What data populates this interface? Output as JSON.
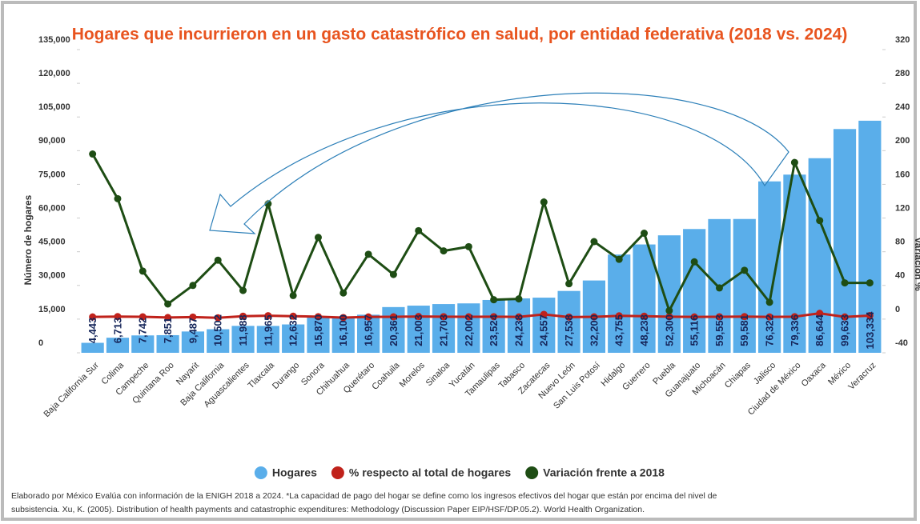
{
  "chart_data": {
    "type": "bar_line",
    "title": "Hogares que incurrieron en un gasto catastrófico en salud, por entidad federativa (2018 vs. 2024)",
    "ylabel": "Número de hogares",
    "y2label": "Variación %",
    "categories": [
      "Baja California Sur",
      "Colima",
      "Campeche",
      "Quintana Roo",
      "Nayarit",
      "Baja California",
      "Aguascalientes",
      "Tlaxcala",
      "Durango",
      "Sonora",
      "Chihuahua",
      "Querétaro",
      "Coahuila",
      "Morelos",
      "Sinaloa",
      "Yucatán",
      "Tamaulipas",
      "Tabasco",
      "Zacatecas",
      "Nuevo León",
      "San Luis Potosí",
      "Hidalgo",
      "Guerrero",
      "Puebla",
      "Guanajuato",
      "Michoacán",
      "Chiapas",
      "Jalisco",
      "Ciudad de México",
      "Oaxaca",
      "México",
      "Veracruz"
    ],
    "series": [
      {
        "name": "Hogares",
        "type": "bar",
        "axis": "y",
        "color": "#5aaeea",
        "values": [
          4443,
          6713,
          7742,
          7851,
          9487,
          10502,
          11988,
          11965,
          12632,
          15870,
          16100,
          16957,
          20361,
          21003,
          21703,
          22002,
          23524,
          24238,
          24557,
          27538,
          32200,
          43755,
          48238,
          52300,
          55116,
          59553,
          59581,
          76322,
          79336,
          86644,
          99633,
          103334
        ],
        "value_labels": [
          "4,443",
          "6,713",
          "7,742",
          "7,851",
          "9,487",
          "10,502",
          "11,988",
          "11,965",
          "12,632",
          "15,870",
          "16,100",
          "16,957",
          "20,361",
          "21,003",
          "21,703",
          "22,002",
          "23,524",
          "24,238",
          "24,557",
          "27,538",
          "32,200",
          "43,755",
          "48,238",
          "52,300",
          "55,116",
          "59,553",
          "59,581",
          "76,322",
          "79,336",
          "86,644",
          "99,633",
          "103,334"
        ]
      },
      {
        "name": "% respecto al total de hogares",
        "type": "line",
        "axis": "y2",
        "color": "#c0221b",
        "values": [
          2.6,
          3.0,
          2.7,
          1.9,
          2.4,
          1.6,
          3.5,
          4.1,
          3.5,
          2.9,
          1.8,
          2.6,
          2.7,
          3.1,
          2.9,
          2.7,
          2.9,
          2.6,
          5.6,
          2.4,
          2.7,
          3.9,
          3.5,
          2.9,
          2.6,
          2.8,
          3.0,
          2.6,
          2.9,
          6.9,
          2.6,
          4.2
        ]
      },
      {
        "name": "Variación frente a 2018",
        "type": "line",
        "axis": "y2",
        "color": "#1e4d14",
        "values": [
          196,
          143,
          57,
          18,
          40,
          70,
          34,
          137,
          28,
          97,
          31,
          77,
          53,
          105,
          81,
          86,
          23,
          24,
          139,
          42,
          92,
          71,
          102,
          10,
          68,
          37,
          58,
          20,
          186,
          117,
          43,
          43
        ]
      }
    ],
    "ylim": [
      0,
      135000
    ],
    "yticks": [
      0,
      {
        "value": 15000,
        "label": "15,000"
      },
      {
        "value": 30000,
        "label": "30,000"
      },
      {
        "value": 45000,
        "label": "45,000"
      },
      {
        "value": 60000,
        "label": "60,000"
      },
      {
        "value": 75000,
        "label": "75,000"
      },
      {
        "value": 90000,
        "label": "90,000"
      },
      {
        "value": 105000,
        "label": "105,000"
      },
      {
        "value": 120000,
        "label": "120,000"
      },
      {
        "value": 135000,
        "label": "135,000"
      }
    ],
    "y2lim": [
      -40,
      320
    ],
    "y2ticks": [
      -40,
      0,
      40,
      80,
      120,
      160,
      200,
      240,
      280,
      320
    ],
    "legend": "bottom",
    "footnote": [
      "Elaborado por México Evalúa con información de la ENIGH 2018 a 2024. *La capacidad de pago del hogar se define como los ingresos efectivos del hogar que están por encima del nivel de",
      "subsistencia. Xu, K. (2005). Distribution of health payments and catastrophic expenditures: Methodology (Discussion Paper EIP/HSF/DP.05.2). World Health Organization."
    ]
  }
}
